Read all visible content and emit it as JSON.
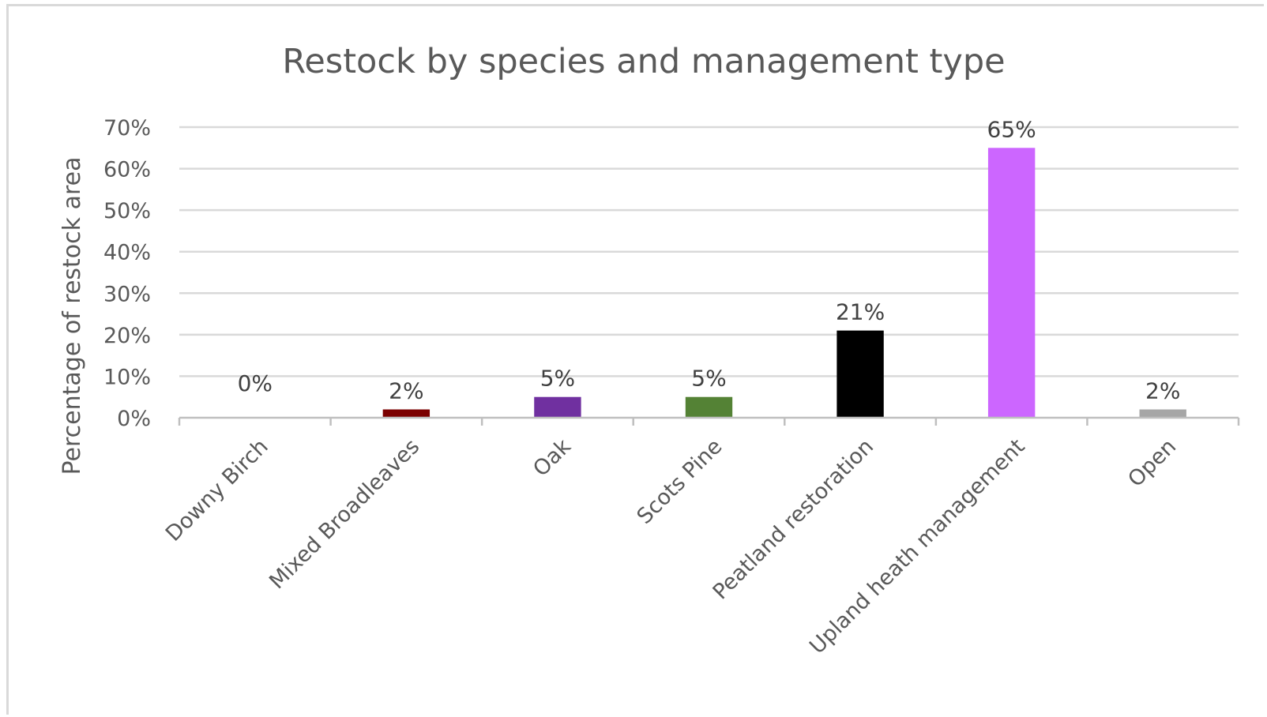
{
  "chart_data": {
    "type": "bar",
    "title": "Restock by species and management type",
    "xlabel": "",
    "ylabel": "Percentage of restock area",
    "categories": [
      "Downy Birch",
      "Mixed Broadleaves",
      "Oak",
      "Scots Pine",
      "Peatland restoration",
      "Upland heath management",
      "Open"
    ],
    "values": [
      0,
      2,
      5,
      5,
      21,
      65,
      2
    ],
    "data_labels": [
      "0%",
      "2%",
      "5%",
      "5%",
      "21%",
      "65%",
      "2%"
    ],
    "bar_colors": [
      "#ffffff",
      "#7b0000",
      "#7030a0",
      "#548235",
      "#000000",
      "#cc66ff",
      "#a6a6a6"
    ],
    "ylim": [
      0,
      70
    ],
    "yticks": [
      0,
      10,
      20,
      30,
      40,
      50,
      60,
      70
    ],
    "ytick_labels": [
      "0%",
      "10%",
      "20%",
      "30%",
      "40%",
      "50%",
      "60%",
      "70%"
    ],
    "grid": true,
    "legend": "none",
    "colors": {
      "text": "#595959",
      "data_label": "#404040",
      "grid": "#d9d9d9",
      "axis": "#bfbfbf"
    }
  }
}
